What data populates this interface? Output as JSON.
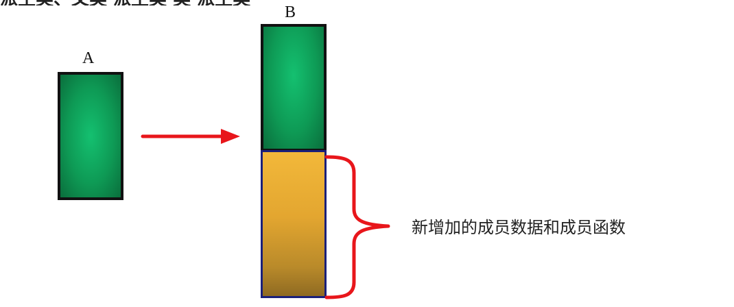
{
  "top_text": "派生类、父类 派生类 类 派生类",
  "labels": {
    "a": "A",
    "b": "B"
  },
  "note": "新增加的成员数据和成员函数",
  "colors": {
    "green": "#0e9a55",
    "yellow": "#e3a630",
    "arrow": "#e8161b",
    "brace": "#e8161b",
    "border_dark": "#111111",
    "border_blue": "#1a1f7a"
  }
}
